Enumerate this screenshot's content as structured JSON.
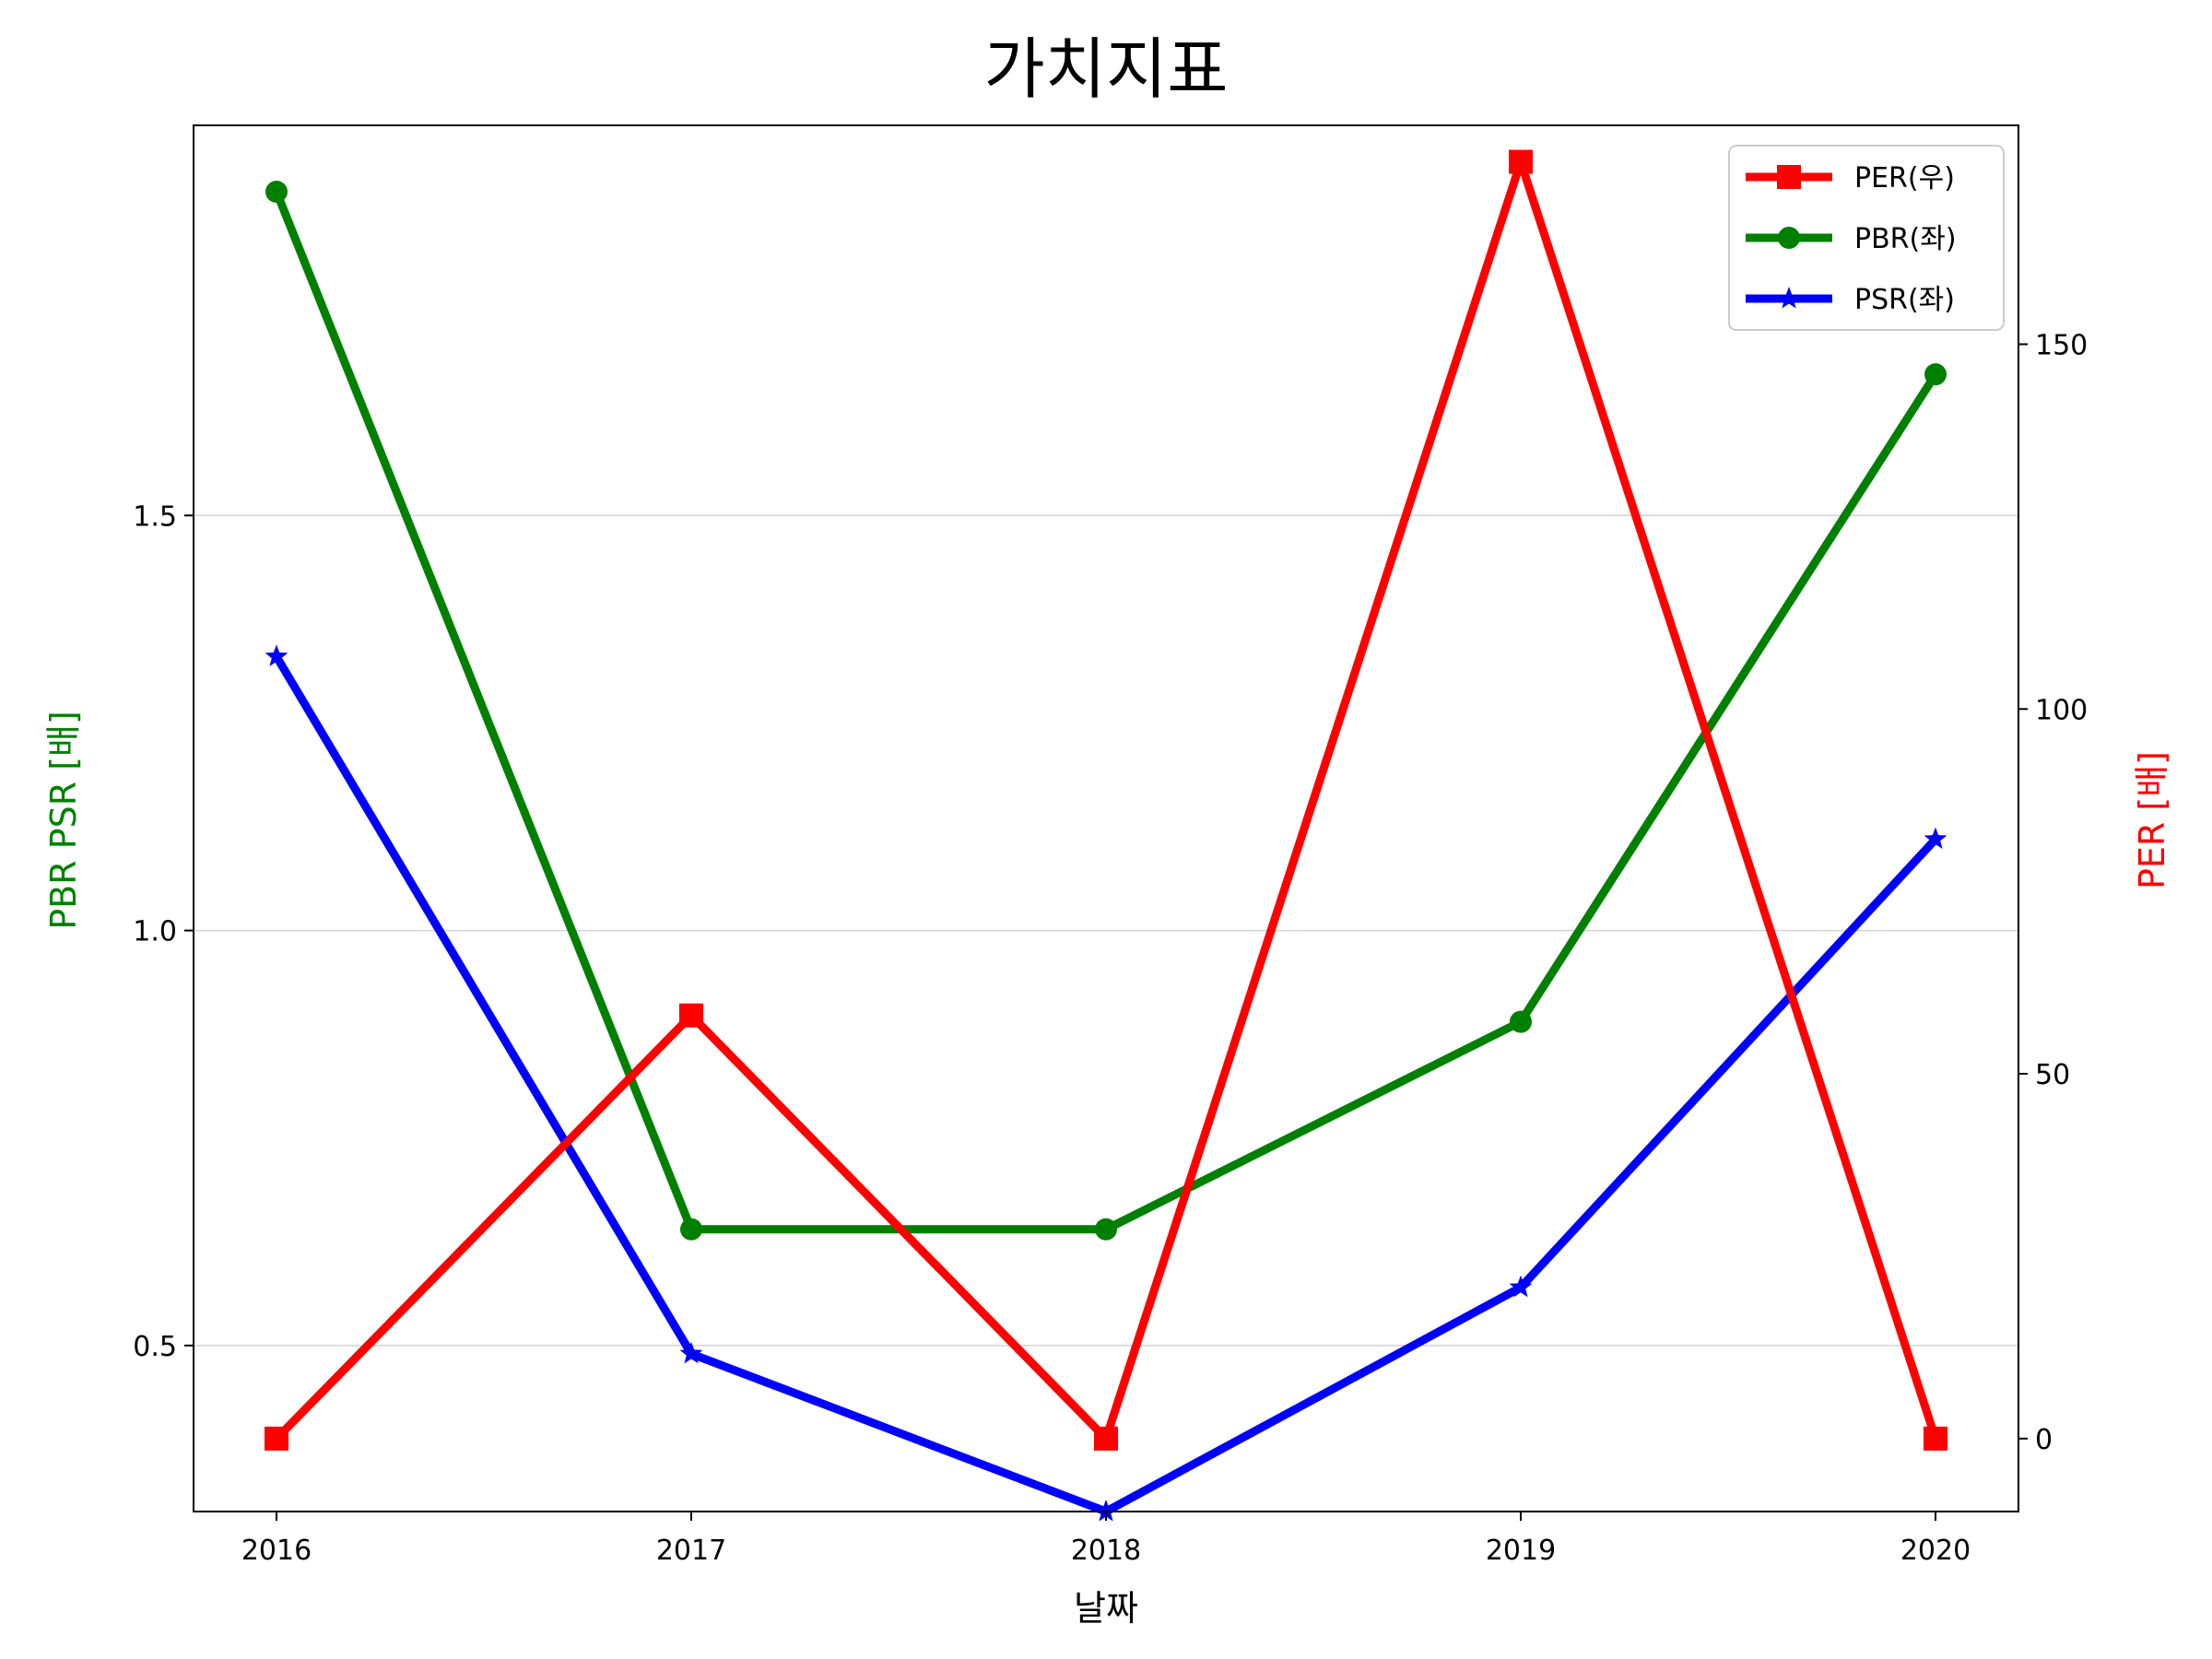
{
  "chart_data": {
    "type": "line",
    "title": "가치지표",
    "xlabel": "날짜",
    "ylabel_left": "PBR PSR [배]",
    "ylabel_right": "PER [배]",
    "x": [
      "2016",
      "2017",
      "2018",
      "2019",
      "2020"
    ],
    "ylim_left": [
      0.3,
      1.97
    ],
    "ylim_right": [
      -10,
      180
    ],
    "yticks_left": [
      "0.5",
      "1.0",
      "1.5"
    ],
    "yticks_right": [
      "0",
      "50",
      "100",
      "150"
    ],
    "grid": "horizontal (left axis)",
    "legend_placement": "top-right",
    "series": [
      {
        "name": "PER(우)",
        "axis": "right",
        "color": "#ff0000",
        "marker": "square",
        "values": [
          0,
          58,
          0,
          175,
          0
        ]
      },
      {
        "name": "PBR(좌)",
        "axis": "left",
        "color": "#008000",
        "marker": "circle",
        "values": [
          1.89,
          0.64,
          0.64,
          0.89,
          1.67
        ]
      },
      {
        "name": "PSR(좌)",
        "axis": "left",
        "color": "#0000ff",
        "marker": "star",
        "values": [
          1.33,
          0.49,
          0.3,
          0.57,
          1.11
        ]
      }
    ]
  }
}
